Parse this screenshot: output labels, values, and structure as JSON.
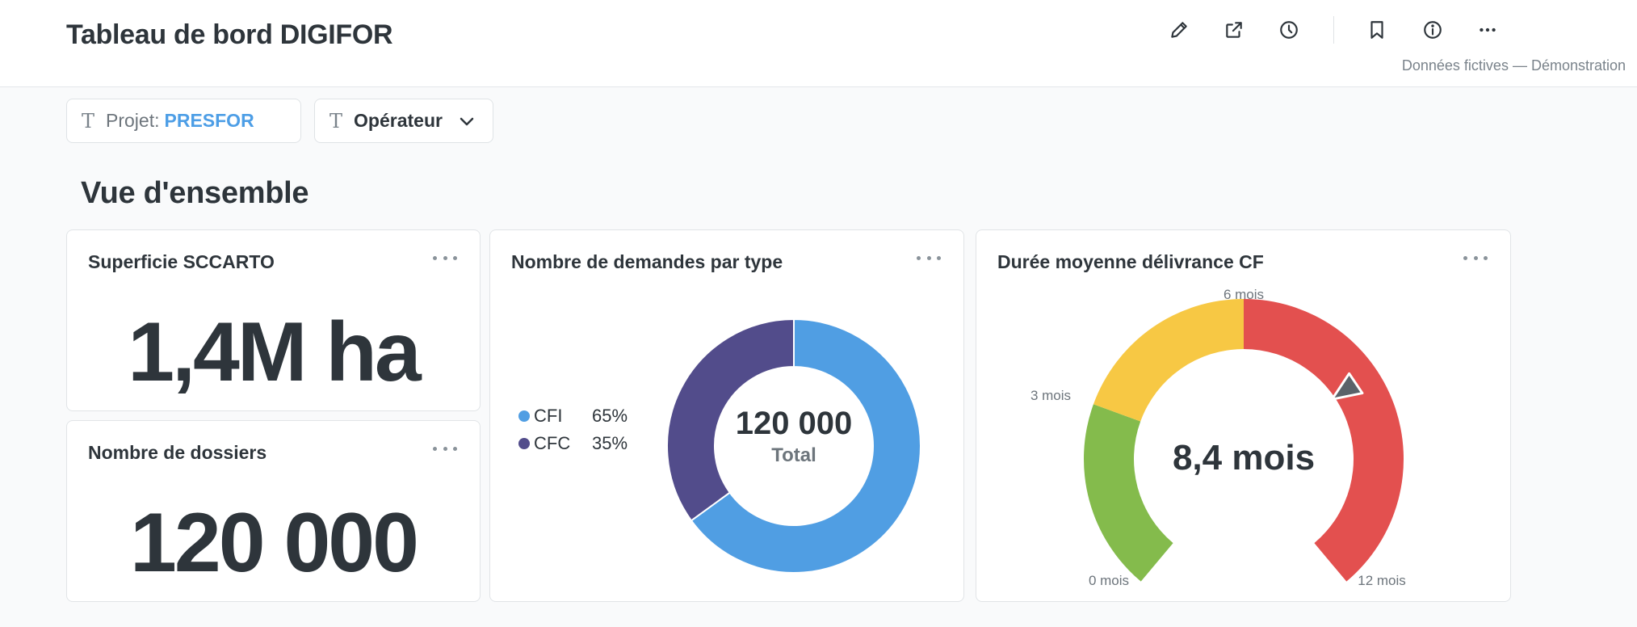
{
  "header": {
    "title": "Tableau de bord DIGIFOR",
    "subtitle": "Données fictives — Démonstration",
    "icons": [
      "pencil-icon",
      "share-icon",
      "clock-icon",
      "bookmark-icon",
      "info-icon",
      "more-icon"
    ]
  },
  "filters": {
    "project_label": "Projet:",
    "project_value": "PRESFOR",
    "operator_label": "Opérateur"
  },
  "section": {
    "title": "Vue d'ensemble"
  },
  "cards": {
    "superficie": {
      "title": "Superficie SCCARTO",
      "value": "1,4M ha"
    },
    "dossiers": {
      "title": "Nombre de dossiers",
      "value": "120 000"
    },
    "demandes": {
      "title": "Nombre de demandes par type",
      "center_value": "120 000",
      "center_label": "Total",
      "legend": [
        {
          "name": "CFI",
          "pct": "65%"
        },
        {
          "name": "CFC",
          "pct": "35%"
        }
      ]
    },
    "duree": {
      "title": "Durée moyenne délivrance CF",
      "value_label": "8,4 mois",
      "labels": {
        "min": "0 mois",
        "q1": "3 mois",
        "mid": "6 mois",
        "max": "12 mois"
      }
    }
  },
  "chart_data": [
    {
      "type": "pie",
      "title": "Nombre de demandes par type",
      "categories": [
        "CFI",
        "CFC"
      ],
      "values": [
        65,
        35
      ],
      "colors": [
        "#509ee3",
        "#524c8b"
      ],
      "total": 120000
    },
    {
      "type": "gauge",
      "title": "Durée moyenne délivrance CF",
      "value": 8.4,
      "min": 0,
      "max": 12,
      "segments": [
        {
          "from": 0,
          "to": 3,
          "color": "#84bb4c"
        },
        {
          "from": 3,
          "to": 6,
          "color": "#f7c844"
        },
        {
          "from": 6,
          "to": 12,
          "color": "#e3504f"
        }
      ]
    }
  ]
}
